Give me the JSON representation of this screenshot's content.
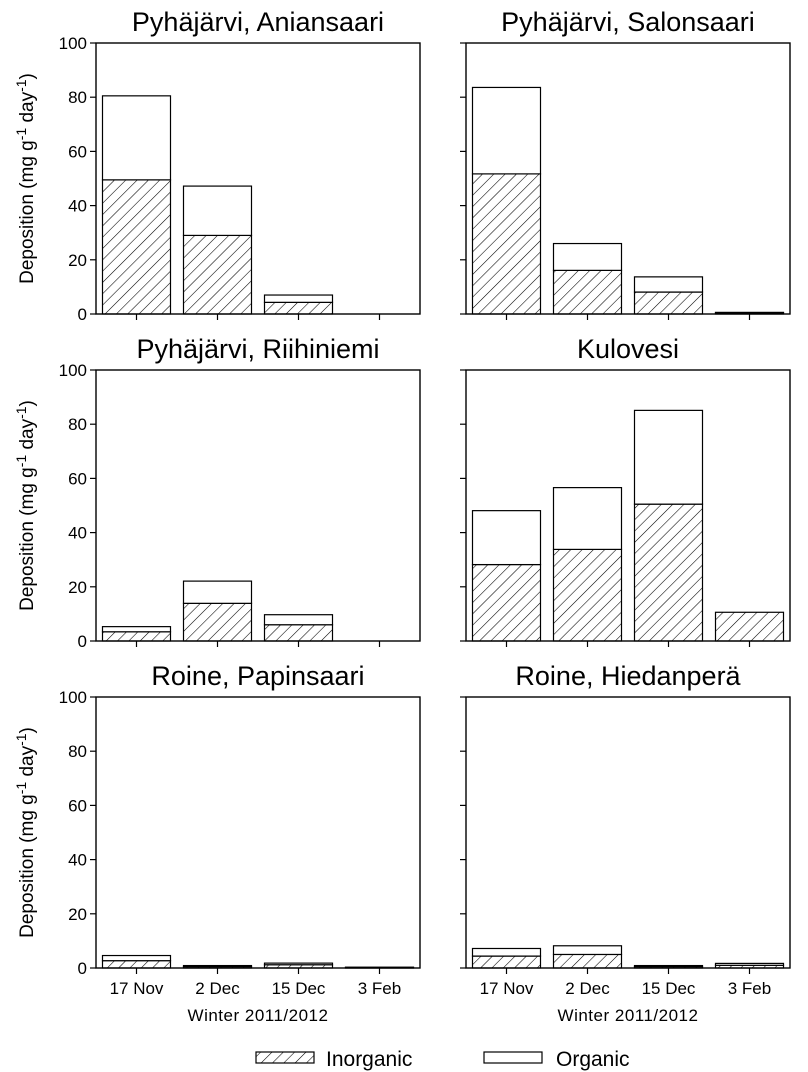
{
  "figure": {
    "xlabel": "Winter 2011/2012",
    "ylabel_main": "Deposition (mg g",
    "ylabel_sup1": "-1",
    "ylabel_mid": " day",
    "ylabel_sup2": "-1",
    "ylabel_end": ")",
    "legend": {
      "inorganic": "Inorganic",
      "organic": "Organic"
    }
  },
  "chart_data": [
    {
      "type": "bar",
      "stacked": true,
      "title": "Pyhäjärvi, Aniansaari",
      "categories": [
        "17 Nov",
        "2 Dec",
        "15 Dec",
        "3 Feb"
      ],
      "ylim": [
        0,
        100
      ],
      "yticks": [
        0,
        20,
        40,
        60,
        80,
        100
      ],
      "series": [
        {
          "name": "Inorganic",
          "values": [
            49.5,
            29,
            4.3,
            0
          ]
        },
        {
          "name": "Organic",
          "values": [
            31,
            18.2,
            2.7,
            0
          ]
        }
      ]
    },
    {
      "type": "bar",
      "stacked": true,
      "title": "Pyhäjärvi, Salonsaari",
      "categories": [
        "17 Nov",
        "2 Dec",
        "15 Dec",
        "3 Feb"
      ],
      "ylim": [
        0,
        100
      ],
      "yticks": [
        0,
        20,
        40,
        60,
        80,
        100
      ],
      "series": [
        {
          "name": "Inorganic",
          "values": [
            51.7,
            16.1,
            8.1,
            0.4
          ]
        },
        {
          "name": "Organic",
          "values": [
            31.9,
            9.9,
            5.6,
            0.2
          ]
        }
      ]
    },
    {
      "type": "bar",
      "stacked": true,
      "title": "Pyhäjärvi, Riihiniemi",
      "categories": [
        "17 Nov",
        "2 Dec",
        "15 Dec",
        "3 Feb"
      ],
      "ylim": [
        0,
        100
      ],
      "yticks": [
        0,
        20,
        40,
        60,
        80,
        100
      ],
      "series": [
        {
          "name": "Inorganic",
          "values": [
            3.4,
            13.9,
            6.0,
            0
          ]
        },
        {
          "name": "Organic",
          "values": [
            1.9,
            8.2,
            3.7,
            0
          ]
        }
      ]
    },
    {
      "type": "bar",
      "stacked": true,
      "title": "Kulovesi",
      "categories": [
        "17 Nov",
        "2 Dec",
        "15 Dec",
        "3 Feb"
      ],
      "ylim": [
        0,
        100
      ],
      "yticks": [
        0,
        20,
        40,
        60,
        80,
        100
      ],
      "series": [
        {
          "name": "Inorganic",
          "values": [
            28.2,
            33.8,
            50.5,
            10.6
          ]
        },
        {
          "name": "Organic",
          "values": [
            19.9,
            22.8,
            34.6,
            0
          ]
        }
      ]
    },
    {
      "type": "bar",
      "stacked": true,
      "title": "Roine, Papinsaari",
      "categories": [
        "17 Nov",
        "2 Dec",
        "15 Dec",
        "3 Feb"
      ],
      "ylim": [
        0,
        100
      ],
      "yticks": [
        0,
        20,
        40,
        60,
        80,
        100
      ],
      "series": [
        {
          "name": "Inorganic",
          "values": [
            2.7,
            0.5,
            1.2,
            0.2
          ]
        },
        {
          "name": "Organic",
          "values": [
            1.9,
            0.4,
            0.6,
            0.1
          ]
        }
      ]
    },
    {
      "type": "bar",
      "stacked": true,
      "title": "Roine, Hiedanperä",
      "categories": [
        "17 Nov",
        "2 Dec",
        "15 Dec",
        "3 Feb"
      ],
      "ylim": [
        0,
        100
      ],
      "yticks": [
        0,
        20,
        40,
        60,
        80,
        100
      ],
      "series": [
        {
          "name": "Inorganic",
          "values": [
            4.4,
            5.0,
            0.5,
            1.0
          ]
        },
        {
          "name": "Organic",
          "values": [
            2.8,
            3.2,
            0.4,
            0.7
          ]
        }
      ]
    }
  ]
}
